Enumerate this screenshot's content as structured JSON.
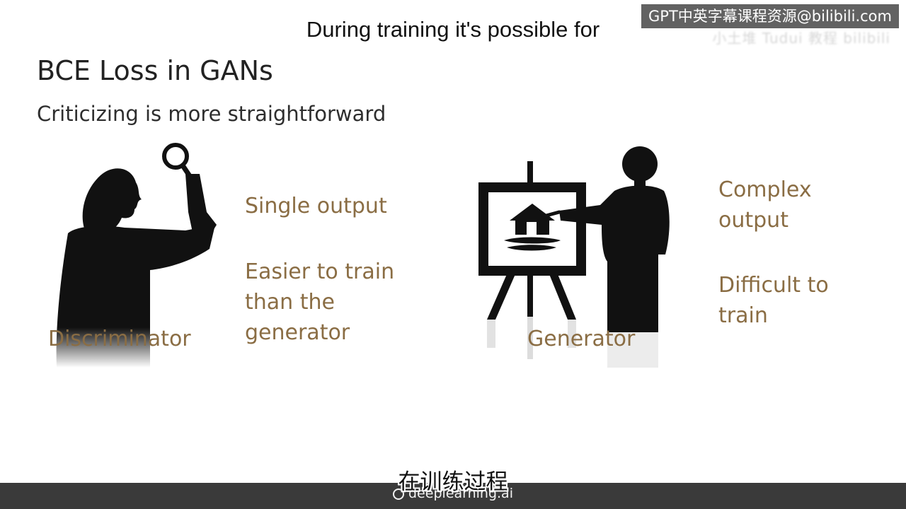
{
  "watermark": {
    "text": "GPT中英字幕课程资源@bilibili.com",
    "ghost_text": "小土堆 Tudui 教程 bilibili"
  },
  "subtitles": {
    "english": "During training it's possible for",
    "chinese": "在训练过程"
  },
  "slide": {
    "title": "BCE Loss in GANs",
    "subtitle": "Criticizing is more straightforward",
    "discriminator": {
      "label": "Discriminator",
      "points": [
        "Single output",
        "Easier to train than the generator"
      ]
    },
    "generator": {
      "label": "Generator",
      "points": [
        "Complex output",
        "Difficult to train"
      ]
    }
  },
  "footer": {
    "brand": "deeplearning.ai"
  },
  "colors": {
    "accent_gold": "#8a6d44",
    "silhouette": "#111111",
    "bar": "#3a3a3a"
  },
  "icons": [
    "magnifying-glass-icon",
    "house-icon",
    "easel-icon",
    "paintbrush-icon",
    "deeplearning-logo-icon"
  ]
}
